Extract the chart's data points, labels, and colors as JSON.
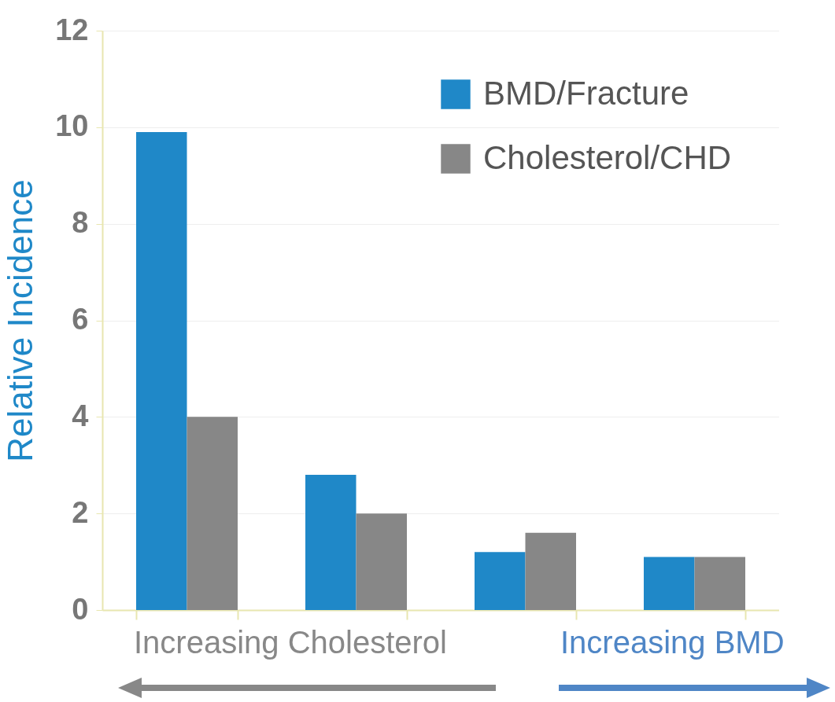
{
  "chart_data": {
    "type": "bar",
    "ylabel": "Relative Incidence",
    "categories": [
      null,
      null,
      null,
      null
    ],
    "series": [
      {
        "name": "BMD/Fracture",
        "color": "#1f88c8",
        "values": [
          9.9,
          2.8,
          1.2,
          1.1
        ]
      },
      {
        "name": "Cholesterol/CHD",
        "color": "#878787",
        "values": [
          4.0,
          2.0,
          1.6,
          1.1
        ]
      }
    ],
    "ylim": [
      0,
      12
    ],
    "yticks": [
      0,
      2,
      4,
      6,
      8,
      10,
      12
    ],
    "grid": "y",
    "legend": "top right",
    "tick_labels": "y",
    "annotations": [
      "Increasing Cholesterol",
      "Increasing BMD"
    ]
  }
}
